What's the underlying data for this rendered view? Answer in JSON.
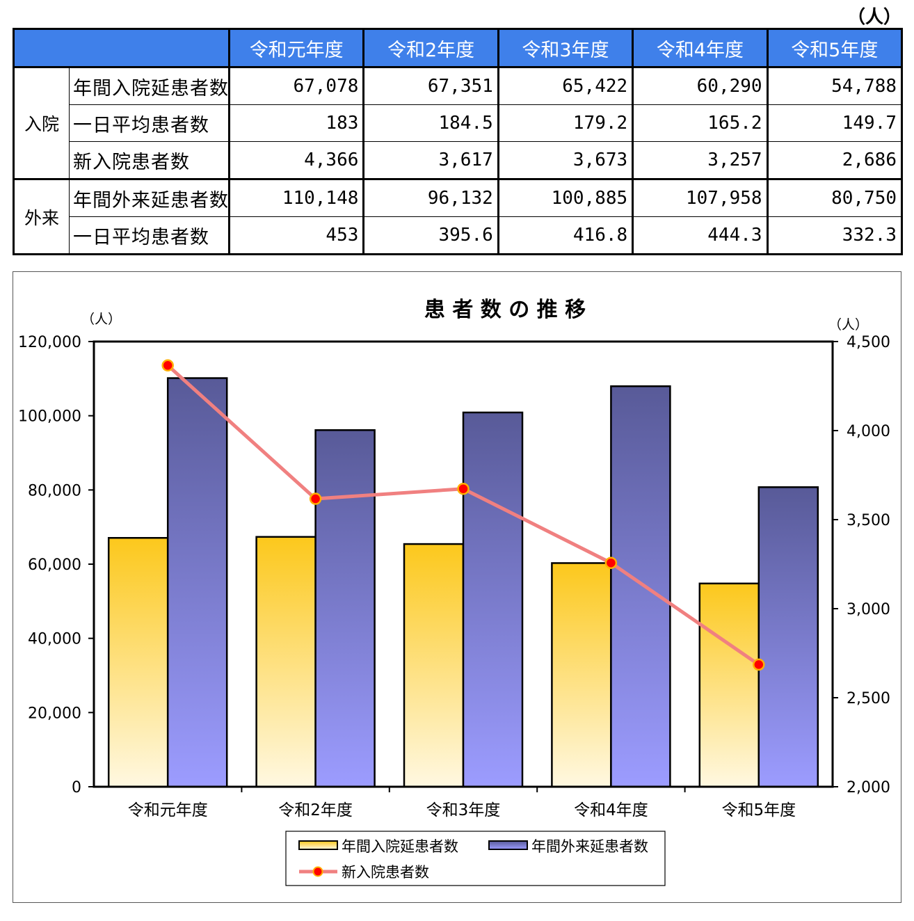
{
  "table": {
    "unit": "（人）",
    "years": [
      "令和元年度",
      "令和2年度",
      "令和3年度",
      "令和4年度",
      "令和5年度"
    ],
    "groups": [
      {
        "name": "入院",
        "rows": [
          {
            "label": "年間入院延患者数",
            "values": [
              "67,078",
              "67,351",
              "65,422",
              "60,290",
              "54,788"
            ]
          },
          {
            "label": "一日平均患者数",
            "values": [
              "183",
              "184.5",
              "179.2",
              "165.2",
              "149.7"
            ]
          },
          {
            "label": "新入院患者数",
            "values": [
              "4,366",
              "3,617",
              "3,673",
              "3,257",
              "2,686"
            ]
          }
        ]
      },
      {
        "name": "外来",
        "rows": [
          {
            "label": "年間外来延患者数",
            "values": [
              "110,148",
              "96,132",
              "100,885",
              "107,958",
              "80,750"
            ]
          },
          {
            "label": "一日平均患者数",
            "values": [
              "453",
              "395.6",
              "416.8",
              "444.3",
              "332.3"
            ]
          }
        ]
      }
    ]
  },
  "chart_data": {
    "type": "bar",
    "title": "患 者 数 の 推 移",
    "left_unit": "（人）",
    "right_unit": "（人）",
    "categories": [
      "令和元年度",
      "令和2年度",
      "令和3年度",
      "令和4年度",
      "令和5年度"
    ],
    "ylim": [
      0,
      120000
    ],
    "y_ticks": [
      "0",
      "20,000",
      "40,000",
      "60,000",
      "80,000",
      "100,000",
      "120,000"
    ],
    "y2lim": [
      2000,
      4500
    ],
    "y2_ticks": [
      "2,000",
      "2,500",
      "3,000",
      "3,500",
      "4,000",
      "4,500"
    ],
    "series": [
      {
        "name": "年間入院延患者数",
        "type": "bar",
        "axis": "left",
        "values": [
          67078,
          67351,
          65422,
          60290,
          54788
        ],
        "color_top": "#fcc81c",
        "color_bottom": "#fff8e1"
      },
      {
        "name": "年間外来延患者数",
        "type": "bar",
        "axis": "left",
        "values": [
          110148,
          96132,
          100885,
          107958,
          80750
        ],
        "color_top": "#585a98",
        "color_bottom": "#9c9cff"
      },
      {
        "name": "新入院患者数",
        "type": "line",
        "axis": "right",
        "values": [
          4366,
          3617,
          3673,
          3257,
          2686
        ],
        "color": "#f08080",
        "marker": "#ff0000"
      }
    ],
    "legend_position": "bottom",
    "grid": false
  }
}
